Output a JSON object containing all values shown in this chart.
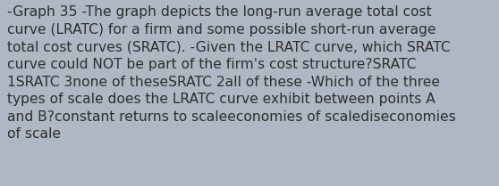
{
  "background_color": "#adb8c4",
  "lines": [
    "-Graph 35 -The graph depicts the long-run average total cost",
    "curve (LRATC) for a firm and some possible short-run average",
    "total cost curves (SRATC). -Given the LRATC curve, which SRATC",
    "curve could NOT be part of the firm's cost structure?SRATC",
    "1SRATC 3none of theseSRATC 2all of these -Which of the three",
    "types of scale does the LRATC curve exhibit between points A",
    "and B?constant returns to scaleeconomies of scalediseconomies",
    "of scale"
  ],
  "font_size": 11.2,
  "font_color": "#2e2e2e",
  "font_family": "DejaVu Sans",
  "figsize": [
    5.58,
    2.09
  ],
  "dpi": 100
}
